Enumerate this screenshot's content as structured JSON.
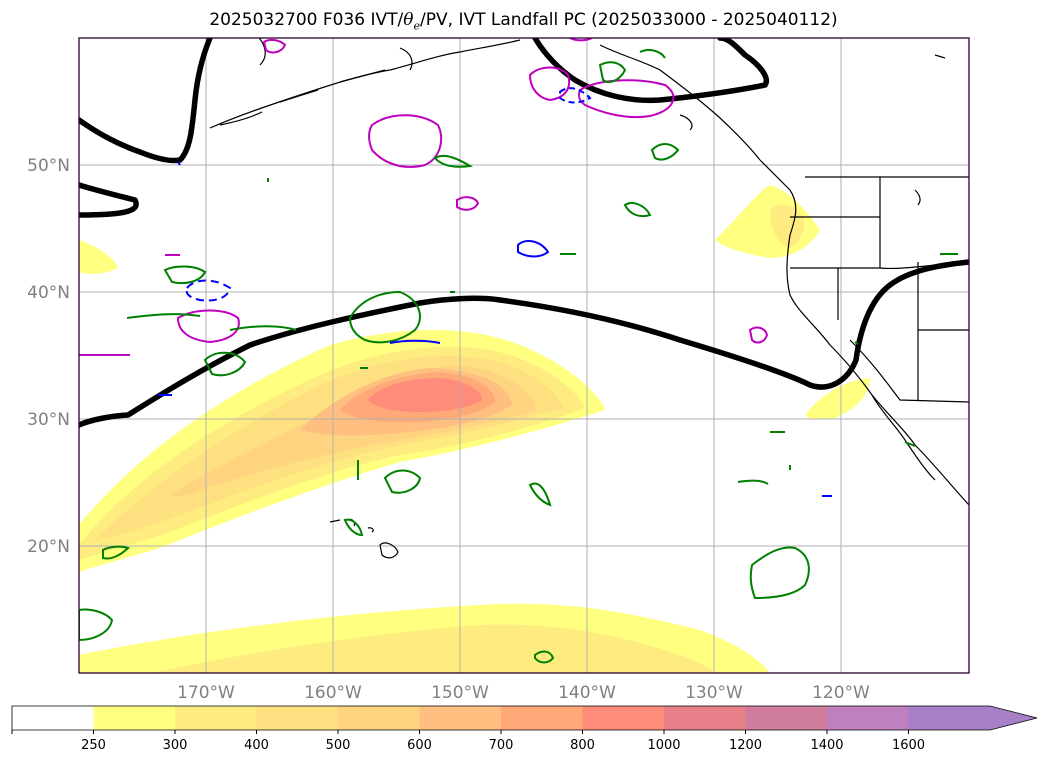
{
  "title": {
    "prefix": "2025032700 F036 IVT/",
    "theta_sym": "θ",
    "theta_sub": "e",
    "suffix": "/PV, IVT Landfall PC (2025033000 - 2025040112)"
  },
  "map": {
    "lat_labels": [
      "50°N",
      "40°N",
      "30°N",
      "20°N"
    ],
    "lon_labels": [
      "170°W",
      "160°W",
      "150°W",
      "140°W",
      "130°W",
      "120°W"
    ],
    "gridlines": true
  },
  "colorbar": {
    "ticks": [
      "250",
      "300",
      "400",
      "500",
      "600",
      "700",
      "800",
      "1000",
      "1200",
      "1400",
      "1600"
    ],
    "colors": [
      "#ffffff",
      "#ffff80",
      "#ffec80",
      "#ffe080",
      "#ffd480",
      "#ffbf80",
      "#ffa878",
      "#ff8c7a",
      "#e8808a",
      "#d07c9c",
      "#bf80c0",
      "#a880c8"
    ],
    "extend": "max"
  },
  "colors": {
    "contour_positive_pv": "#bf00bf",
    "contour_green": "#008000",
    "contour_blue": "#0000ff",
    "ivt_landfall_pc": "#000000",
    "gridline": "#b0b0b0"
  }
}
